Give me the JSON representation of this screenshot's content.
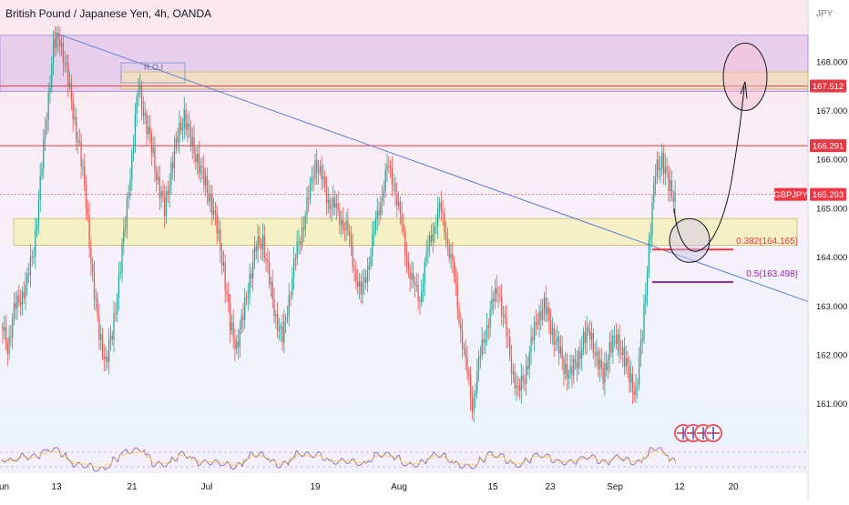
{
  "header": {
    "title": "British Pound / Japanese Yen, 4h, OANDA"
  },
  "axis": {
    "currency": "JPY"
  },
  "chart_data": {
    "type": "candlestick",
    "title": "British Pound / Japanese Yen, 4h, OANDA",
    "y_unit": "JPY",
    "ylim": [
      160.1,
      168.9
    ],
    "y_ticks": [
      "168.000",
      "167.000",
      "166.000",
      "165.000",
      "164.000",
      "163.000",
      "162.000",
      "161.000"
    ],
    "x_ticks": [
      "Jun",
      "13",
      "21",
      "Jul",
      "19",
      "Aug",
      "15",
      "23",
      "Sep",
      "12",
      "20"
    ],
    "price_badges": [
      {
        "label": "167.512",
        "value": 167.512,
        "color": "#e53946"
      },
      {
        "label": "166.291",
        "value": 166.291,
        "color": "#e53946"
      },
      {
        "label": "GBPJPY",
        "value": 165.293,
        "color": "#f23645"
      },
      {
        "label": "165.293",
        "value": 165.293,
        "color": "#f23645"
      }
    ],
    "zones": [
      {
        "name": "top-resistance-zone",
        "from": 167.4,
        "to": 168.55,
        "color": "#d9b8e8"
      },
      {
        "name": "roi-zone",
        "from": 167.45,
        "to": 167.8,
        "color": "#f5e3b5"
      },
      {
        "name": "support-zone",
        "from": 164.25,
        "to": 164.8,
        "color": "#f5efb0"
      }
    ],
    "annotations": {
      "roi_label": "R.O.I",
      "fib_382": {
        "label": "0.382(164.165)",
        "value": 164.165,
        "color": "#e53946"
      },
      "fib_5": {
        "label": "0.5(163.498)",
        "value": 163.498,
        "color": "#9c27b0"
      }
    },
    "trendline": {
      "from": [
        "13",
        168.6
      ],
      "color": "#5b7fd6"
    },
    "rsi": {
      "panel": "oscillator",
      "colors": [
        "#7e57c2",
        "#f7c948"
      ]
    },
    "series": [
      {
        "values": [
          162.6,
          162.2,
          162.9,
          163.2,
          163.5,
          164.2,
          165.5,
          167.0,
          168.3,
          168.5,
          167.8,
          167.0,
          166.2,
          165.2,
          163.5,
          162.5,
          161.8,
          162.5,
          163.5,
          164.8,
          166.0,
          167.6,
          166.8,
          166.3,
          165.5,
          165.0,
          165.8,
          166.5,
          166.9,
          166.4,
          166.0,
          165.6,
          165.2,
          164.6,
          163.8,
          162.6,
          162.2,
          162.8,
          163.6,
          164.2,
          164.4,
          163.5,
          162.8,
          162.3,
          163.2,
          164.0,
          164.6,
          165.2,
          166.0,
          165.6,
          165.2,
          165.0,
          164.8,
          164.5,
          163.8,
          163.2,
          163.8,
          164.5,
          165.2,
          165.8,
          165.6,
          164.8,
          164.0,
          163.4,
          163.2,
          164.0,
          164.6,
          165.0,
          164.5,
          163.8,
          162.8,
          161.8,
          161.0,
          161.8,
          162.5,
          163.0,
          163.4,
          162.6,
          161.8,
          161.2,
          161.6,
          162.2,
          162.8,
          163.0,
          162.6,
          162.2,
          161.8,
          161.6,
          161.9,
          162.3,
          162.5,
          161.9,
          161.6,
          162.1,
          162.4,
          162.0,
          161.6,
          161.2,
          162.5,
          164.2,
          165.8,
          166.0,
          165.5,
          165.2
        ]
      }
    ]
  }
}
